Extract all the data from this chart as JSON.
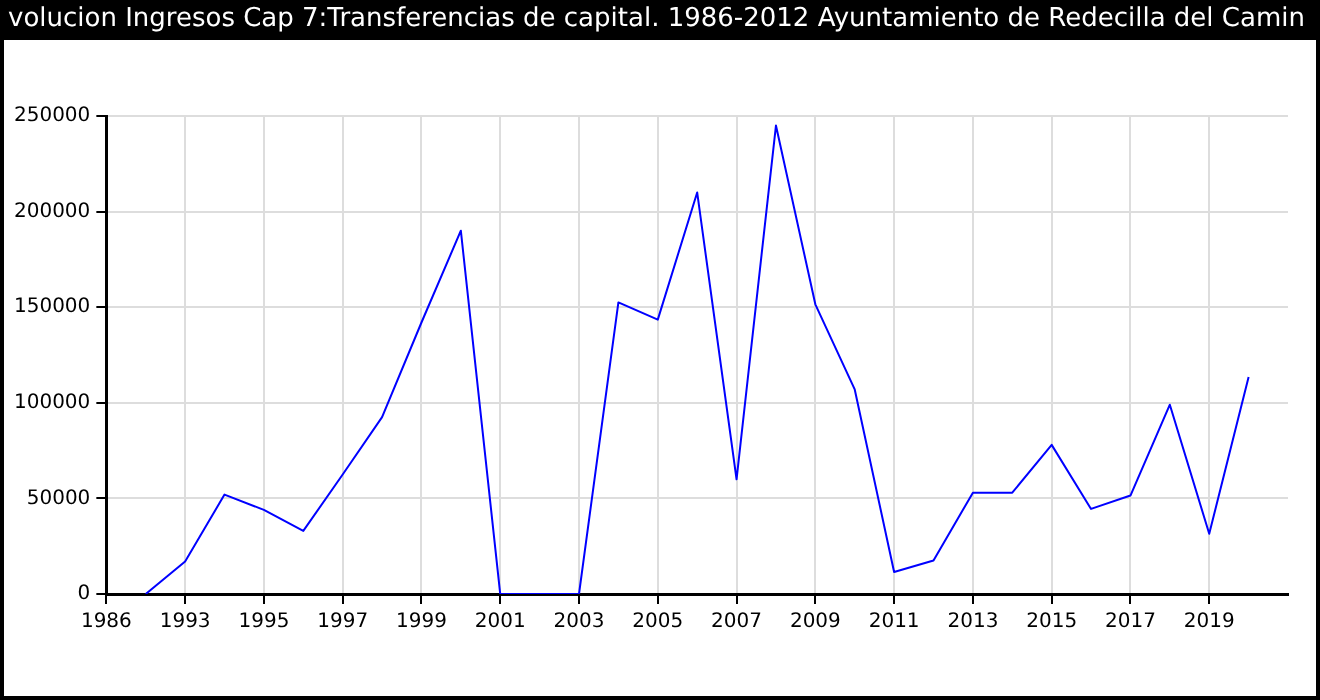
{
  "chart_data": {
    "type": "line",
    "title": "volucion Ingresos Cap 7:Transferencias de capital. 1986-2012 Ayuntamiento de Redecilla del Camin",
    "categories": [
      "1986",
      null,
      "1993",
      null,
      "1995",
      null,
      "1997",
      null,
      "1999",
      null,
      "2001",
      null,
      "2003",
      null,
      "2005",
      null,
      "2007",
      null,
      "2009",
      null,
      "2011",
      null,
      "2013",
      null,
      "2015",
      null,
      "2017",
      null,
      "2019",
      null,
      null
    ],
    "series": [
      {
        "color": "#0000ff",
        "values": [
          null,
          0,
          17000,
          52000,
          44000,
          33000,
          62500,
          92500,
          142000,
          190000,
          0,
          0,
          0,
          152500,
          143500,
          210000,
          60000,
          245000,
          151500,
          107000,
          11500,
          17500,
          53000,
          53000,
          78000,
          44500,
          51500,
          99000,
          31500,
          113500,
          null
        ]
      }
    ],
    "ylim": [
      0,
      250000
    ],
    "yticks": [
      0,
      50000,
      100000,
      150000,
      200000,
      250000
    ],
    "grid": true,
    "legend": false,
    "marker": "none",
    "line_style": "solid"
  }
}
